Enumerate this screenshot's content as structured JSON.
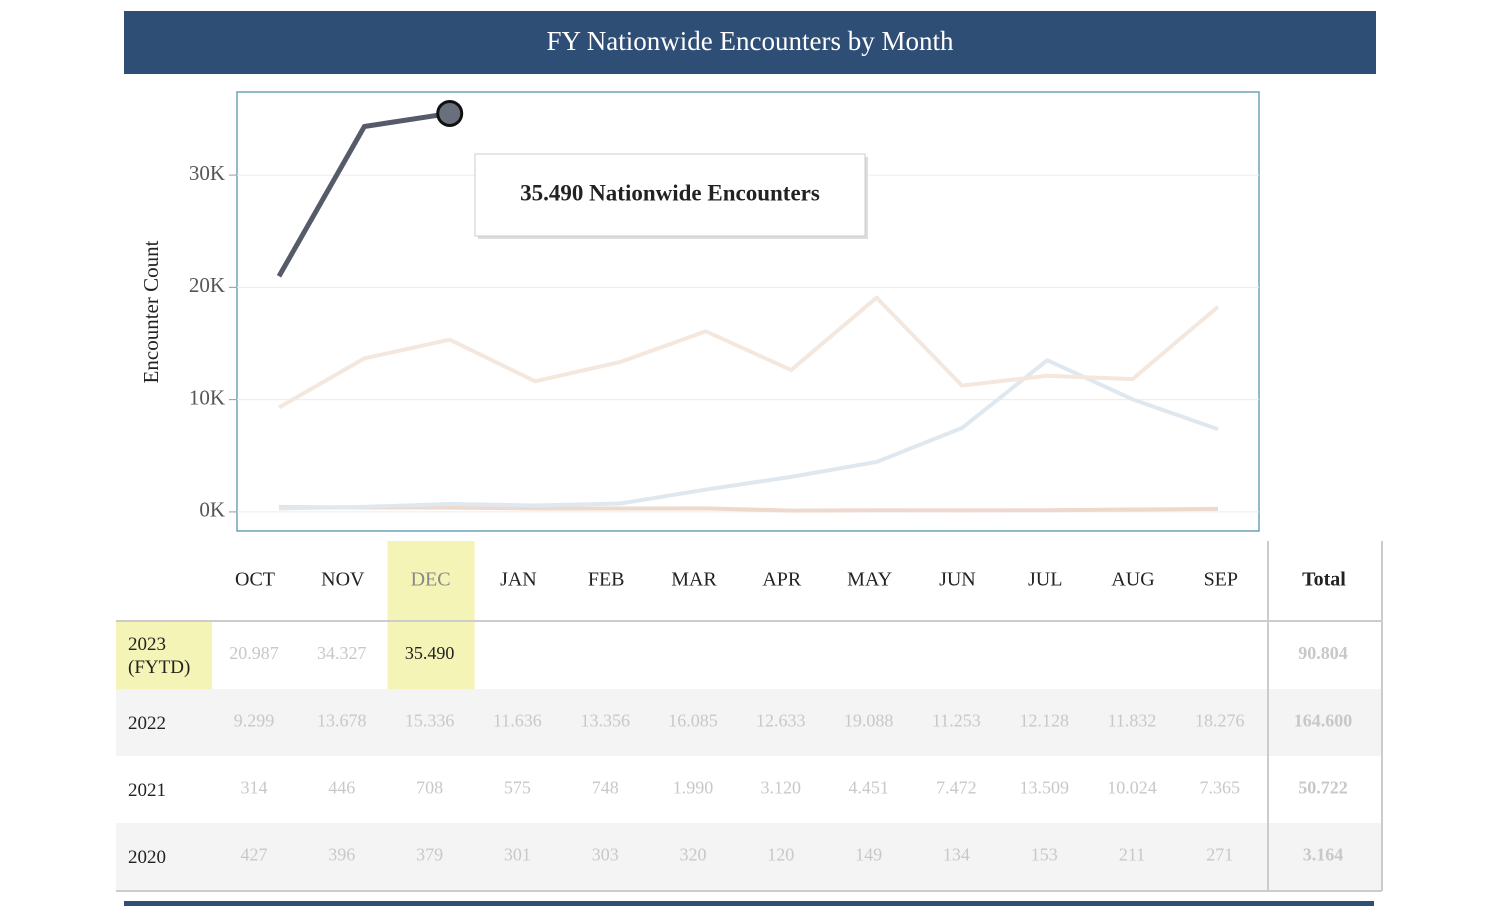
{
  "chart_data": {
    "type": "line",
    "title": "FY Nationwide Encounters by Month",
    "y_label": "Encounter Count",
    "annotation": "35.490 Nationwide Encounters",
    "total_header": "Total",
    "categories": [
      "OCT",
      "NOV",
      "DEC",
      "JAN",
      "FEB",
      "MAR",
      "APR",
      "MAY",
      "JUN",
      "JUL",
      "AUG",
      "SEP"
    ],
    "ylim": [
      -1700,
      37400
    ],
    "yticks": [
      {
        "value": 0,
        "label": "0K"
      },
      {
        "value": 10000,
        "label": "10K"
      },
      {
        "value": 20000,
        "label": "20K"
      },
      {
        "value": 30000,
        "label": "30K"
      }
    ],
    "grid": true,
    "series": [
      {
        "name": "2023 (FYTD)",
        "color": "#555b69",
        "values": [
          20987,
          34327,
          35490,
          null,
          null,
          null,
          null,
          null,
          null,
          null,
          null,
          null
        ],
        "value_labels": [
          "20.987",
          "34.327",
          "35.490",
          null,
          null,
          null,
          null,
          null,
          null,
          null,
          null,
          null
        ],
        "total": {
          "value": 90804,
          "label": "90.804"
        }
      },
      {
        "name": "2022",
        "color": "#f4e7dd",
        "values": [
          9299,
          13678,
          15336,
          11636,
          13356,
          16085,
          12633,
          19088,
          11253,
          12128,
          11832,
          18276
        ],
        "value_labels": [
          "9.299",
          "13.678",
          "15.336",
          "11.636",
          "13.356",
          "16.085",
          "12.633",
          "19.088",
          "11.253",
          "12.128",
          "11.832",
          "18.276"
        ],
        "total": {
          "value": 164600,
          "label": "164.600"
        }
      },
      {
        "name": "2021",
        "color": "#dfe7ef",
        "values": [
          314,
          446,
          708,
          575,
          748,
          1990,
          3120,
          4451,
          7472,
          13509,
          10024,
          7365
        ],
        "value_labels": [
          "314",
          "446",
          "708",
          "575",
          "748",
          "1.990",
          "3.120",
          "4.451",
          "7.472",
          "13.509",
          "10.024",
          "7.365"
        ],
        "total": {
          "value": 50722,
          "label": "50.722"
        }
      },
      {
        "name": "2020",
        "color": "#eed9cd",
        "values": [
          427,
          396,
          379,
          301,
          303,
          320,
          120,
          149,
          134,
          153,
          211,
          271
        ],
        "value_labels": [
          "427",
          "396",
          "379",
          "301",
          "303",
          "320",
          "120",
          "149",
          "134",
          "153",
          "211",
          "271"
        ],
        "total": {
          "value": 3164,
          "label": "3.164"
        }
      }
    ]
  }
}
